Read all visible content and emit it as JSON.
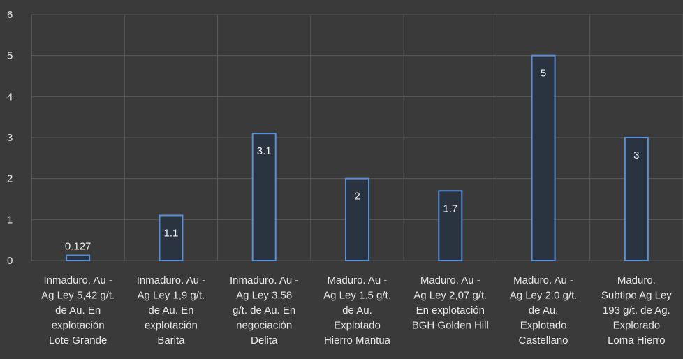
{
  "chart_data": {
    "type": "bar",
    "title": "",
    "xlabel": "",
    "ylabel": "",
    "ylim": [
      0,
      6
    ],
    "yticks": [
      0,
      1,
      2,
      3,
      4,
      5,
      6
    ],
    "grid": true,
    "legend": "none",
    "colors": {
      "background": "#3a3a3a",
      "bar_fill": "#2a3441",
      "bar_outline": "#5b8fd6",
      "grid": "#5a5a5a",
      "text": "#e6e6e6"
    },
    "categories": [
      [
        "Inmaduro. Au -",
        "Ag Ley 5,42 g/t.",
        "de Au. En",
        "explotación",
        "Lote Grande"
      ],
      [
        "Inmaduro. Au -",
        "Ag  Ley 1,9 g/t.",
        "de Au. En",
        "explotación",
        "Barita"
      ],
      [
        "Inmaduro. Au -",
        "Ag  Ley 3.58",
        "g/t. de Au. En",
        "negociación",
        "Delita"
      ],
      [
        "Maduro. Au -",
        "Ag Ley 1.5 g/t.",
        "de Au.",
        "Explotado",
        "Hierro Mantua"
      ],
      [
        "Maduro. Au -",
        "Ag Ley 2,07 g/t.",
        "En explotación",
        "BGH Golden Hill"
      ],
      [
        "Maduro. Au -",
        "Ag Ley 2.0 g/t.",
        "de Au.",
        "Explotado",
        "Castellano"
      ],
      [
        "Maduro.",
        "Subtipo Ag Ley",
        "193 g/t. de Ag.",
        "Explorado",
        "Loma Hierro"
      ]
    ],
    "values": [
      0.127,
      1.1,
      3.1,
      2,
      1.7,
      5,
      3
    ],
    "data_labels": [
      "0.127",
      "1.1",
      "3.1",
      "2",
      "1.7",
      "5",
      "3"
    ]
  }
}
